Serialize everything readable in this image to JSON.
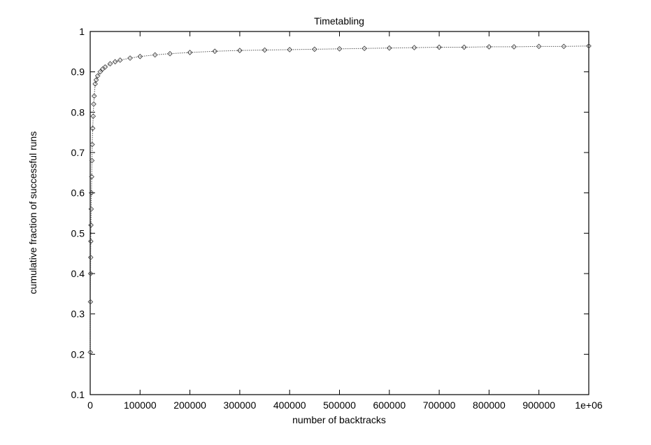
{
  "chart_data": {
    "type": "scatter",
    "title": "Timetabling",
    "xlabel": "number of backtracks",
    "ylabel": "cumulative fraction of successful runs",
    "xlim": [
      0,
      1000000
    ],
    "ylim": [
      0.1,
      1
    ],
    "x_ticks": [
      "0",
      "100000",
      "200000",
      "300000",
      "400000",
      "500000",
      "600000",
      "700000",
      "800000",
      "900000",
      "1e+06"
    ],
    "y_ticks": [
      "0.1",
      "0.2",
      "0.3",
      "0.4",
      "0.5",
      "0.6",
      "0.7",
      "0.8",
      "0.9",
      "1"
    ],
    "grid": false,
    "marker": "diamond",
    "connected": true,
    "series": [
      {
        "x": [
          200,
          500,
          800,
          1000,
          1200,
          1500,
          2000,
          2500,
          3000,
          3500,
          4000,
          5000,
          6000,
          7000,
          8000,
          10000,
          12000,
          15000,
          20000,
          25000,
          30000,
          40000,
          50000,
          60000,
          80000,
          100000,
          130000,
          160000,
          200000,
          250000,
          300000,
          350000,
          400000,
          450000,
          500000,
          550000,
          600000,
          650000,
          700000,
          750000,
          800000,
          850000,
          900000,
          950000,
          1000000
        ],
        "y": [
          0.205,
          0.33,
          0.4,
          0.44,
          0.48,
          0.52,
          0.56,
          0.6,
          0.64,
          0.68,
          0.72,
          0.76,
          0.79,
          0.82,
          0.84,
          0.87,
          0.88,
          0.89,
          0.9,
          0.907,
          0.912,
          0.92,
          0.925,
          0.929,
          0.934,
          0.938,
          0.942,
          0.945,
          0.948,
          0.951,
          0.953,
          0.954,
          0.955,
          0.956,
          0.957,
          0.958,
          0.959,
          0.96,
          0.961,
          0.961,
          0.962,
          0.962,
          0.963,
          0.963,
          0.964
        ]
      }
    ]
  }
}
